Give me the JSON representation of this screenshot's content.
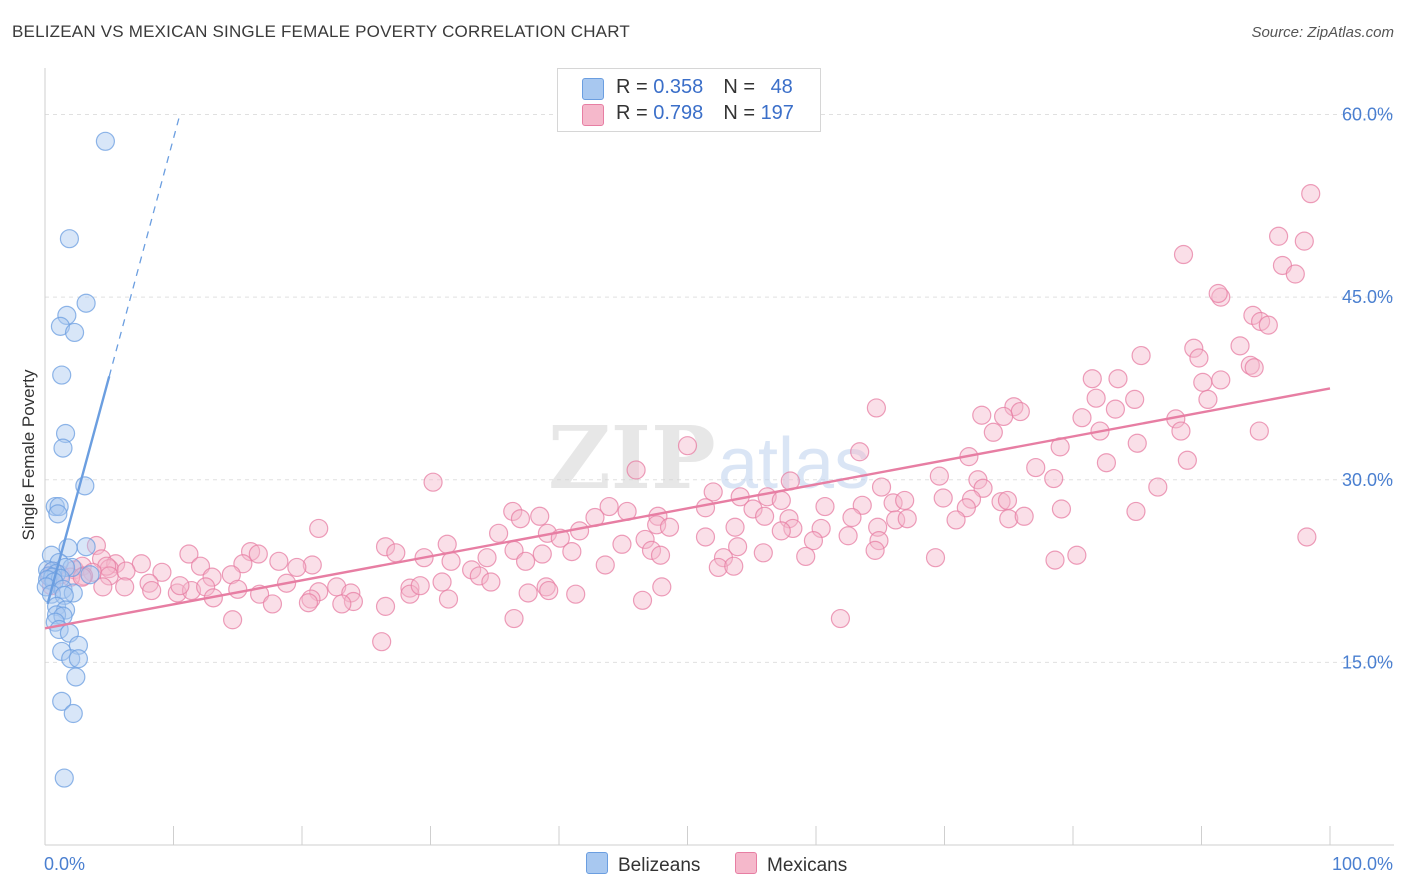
{
  "title": "BELIZEAN VS MEXICAN SINGLE FEMALE POVERTY CORRELATION CHART",
  "source": "Source: ZipAtlas.com",
  "watermark": {
    "zip": "ZIP",
    "atlas": "atlas"
  },
  "legend_stats": [
    {
      "r_label": "R = ",
      "r_value": "0.358",
      "n_label": "N = ",
      "n_value": "48",
      "color": "#a8c8f0"
    },
    {
      "r_label": "R = ",
      "r_value": "0.798",
      "n_label": "N = ",
      "n_value": "197",
      "color": "#f5b8cb"
    }
  ],
  "chart_data": {
    "type": "scatter",
    "title": "BELIZEAN VS MEXICAN SINGLE FEMALE POVERTY CORRELATION CHART",
    "xlabel": "",
    "ylabel": "Single Female Poverty",
    "xlim": [
      0,
      100
    ],
    "ylim": [
      0,
      63
    ],
    "x_tick_labels": [
      "0.0%",
      "100.0%"
    ],
    "y_ticks": [
      15,
      30,
      45,
      60
    ],
    "y_tick_labels": [
      "15.0%",
      "30.0%",
      "45.0%",
      "60.0%"
    ],
    "grid": true,
    "legend": [
      "Belizeans",
      "Mexicans"
    ],
    "series": [
      {
        "name": "Belizeans",
        "color": "#6b9ee0",
        "fill": "#a8c8f0",
        "r": 0.358,
        "n": 48,
        "trend": {
          "x": [
            0.2,
            5.0
          ],
          "y": [
            19.8,
            38.5
          ],
          "dashed_to": [
            10.5,
            60.0
          ]
        },
        "points": [
          [
            4.7,
            57.8
          ],
          [
            1.9,
            49.8
          ],
          [
            3.2,
            44.5
          ],
          [
            1.7,
            43.5
          ],
          [
            1.2,
            42.6
          ],
          [
            2.3,
            42.1
          ],
          [
            1.3,
            38.6
          ],
          [
            1.6,
            33.8
          ],
          [
            1.4,
            32.6
          ],
          [
            3.1,
            29.5
          ],
          [
            0.8,
            27.8
          ],
          [
            1.1,
            27.8
          ],
          [
            1.0,
            27.2
          ],
          [
            3.2,
            24.5
          ],
          [
            1.8,
            24.4
          ],
          [
            0.5,
            23.8
          ],
          [
            1.1,
            23.2
          ],
          [
            2.1,
            22.8
          ],
          [
            1.6,
            22.8
          ],
          [
            0.2,
            22.6
          ],
          [
            0.6,
            22.5
          ],
          [
            0.9,
            22.3
          ],
          [
            0.3,
            22.1
          ],
          [
            3.5,
            22.2
          ],
          [
            0.6,
            22.0
          ],
          [
            0.2,
            21.8
          ],
          [
            1.2,
            21.9
          ],
          [
            0.7,
            21.6
          ],
          [
            0.1,
            21.2
          ],
          [
            1.4,
            21.0
          ],
          [
            0.5,
            20.6
          ],
          [
            2.2,
            20.7
          ],
          [
            1.5,
            20.5
          ],
          [
            0.9,
            19.6
          ],
          [
            1.6,
            19.3
          ],
          [
            0.9,
            18.9
          ],
          [
            1.4,
            18.8
          ],
          [
            0.8,
            18.3
          ],
          [
            1.1,
            17.7
          ],
          [
            1.9,
            17.4
          ],
          [
            2.6,
            16.4
          ],
          [
            1.3,
            15.9
          ],
          [
            2.0,
            15.3
          ],
          [
            2.6,
            15.3
          ],
          [
            2.4,
            13.8
          ],
          [
            1.3,
            11.8
          ],
          [
            2.2,
            10.8
          ],
          [
            1.5,
            5.5
          ]
        ]
      },
      {
        "name": "Mexicans",
        "color": "#e77ea3",
        "fill": "#f5b8cb",
        "r": 0.798,
        "n": 197,
        "trend": {
          "x": [
            0,
            100
          ],
          "y": [
            17.8,
            37.5
          ]
        },
        "points": [
          [
            98.5,
            53.5
          ],
          [
            96.0,
            50.0
          ],
          [
            98.0,
            49.6
          ],
          [
            88.6,
            48.5
          ],
          [
            96.3,
            47.6
          ],
          [
            97.3,
            46.9
          ],
          [
            91.5,
            45.0
          ],
          [
            91.3,
            45.3
          ],
          [
            94.0,
            43.5
          ],
          [
            94.6,
            43.0
          ],
          [
            95.2,
            42.7
          ],
          [
            93.0,
            41.0
          ],
          [
            89.4,
            40.8
          ],
          [
            89.8,
            40.0
          ],
          [
            85.3,
            40.2
          ],
          [
            93.8,
            39.4
          ],
          [
            94.1,
            39.2
          ],
          [
            91.5,
            38.2
          ],
          [
            81.5,
            38.3
          ],
          [
            83.5,
            38.3
          ],
          [
            90.1,
            38.0
          ],
          [
            90.5,
            36.6
          ],
          [
            84.8,
            36.6
          ],
          [
            81.8,
            36.7
          ],
          [
            75.4,
            36.0
          ],
          [
            75.9,
            35.6
          ],
          [
            64.7,
            35.9
          ],
          [
            74.6,
            35.2
          ],
          [
            80.7,
            35.1
          ],
          [
            83.3,
            35.8
          ],
          [
            88.0,
            35.0
          ],
          [
            72.9,
            35.3
          ],
          [
            88.4,
            34.0
          ],
          [
            94.5,
            34.0
          ],
          [
            82.1,
            34.0
          ],
          [
            73.8,
            33.9
          ],
          [
            85.0,
            33.0
          ],
          [
            50.0,
            32.8
          ],
          [
            63.4,
            32.3
          ],
          [
            79.0,
            32.7
          ],
          [
            71.9,
            31.9
          ],
          [
            88.9,
            31.6
          ],
          [
            82.6,
            31.4
          ],
          [
            46.0,
            30.8
          ],
          [
            77.1,
            31.0
          ],
          [
            69.6,
            30.3
          ],
          [
            78.5,
            30.1
          ],
          [
            58.0,
            29.9
          ],
          [
            72.6,
            30.0
          ],
          [
            30.2,
            29.8
          ],
          [
            65.1,
            29.4
          ],
          [
            86.6,
            29.4
          ],
          [
            73.0,
            29.3
          ],
          [
            52.0,
            29.0
          ],
          [
            54.1,
            28.6
          ],
          [
            56.2,
            28.6
          ],
          [
            57.3,
            28.3
          ],
          [
            69.9,
            28.5
          ],
          [
            72.1,
            28.4
          ],
          [
            74.4,
            28.2
          ],
          [
            74.9,
            28.3
          ],
          [
            36.4,
            27.4
          ],
          [
            51.4,
            27.7
          ],
          [
            60.7,
            27.8
          ],
          [
            63.6,
            27.9
          ],
          [
            66.0,
            28.1
          ],
          [
            66.9,
            28.3
          ],
          [
            71.7,
            27.7
          ],
          [
            43.9,
            27.8
          ],
          [
            45.3,
            27.4
          ],
          [
            55.1,
            27.6
          ],
          [
            79.1,
            27.6
          ],
          [
            84.9,
            27.4
          ],
          [
            38.5,
            27.0
          ],
          [
            37.0,
            26.8
          ],
          [
            42.8,
            26.9
          ],
          [
            47.7,
            27.0
          ],
          [
            56.0,
            27.0
          ],
          [
            57.9,
            26.8
          ],
          [
            62.8,
            26.9
          ],
          [
            66.2,
            26.7
          ],
          [
            67.1,
            26.8
          ],
          [
            70.9,
            26.7
          ],
          [
            75.0,
            26.8
          ],
          [
            76.2,
            27.0
          ],
          [
            58.2,
            26.0
          ],
          [
            47.6,
            26.3
          ],
          [
            60.4,
            26.0
          ],
          [
            64.8,
            26.1
          ],
          [
            48.6,
            26.1
          ],
          [
            21.3,
            26.0
          ],
          [
            53.7,
            26.1
          ],
          [
            41.6,
            25.8
          ],
          [
            57.3,
            25.8
          ],
          [
            35.3,
            25.6
          ],
          [
            64.9,
            25.0
          ],
          [
            39.1,
            25.6
          ],
          [
            51.4,
            25.3
          ],
          [
            62.5,
            25.4
          ],
          [
            98.2,
            25.3
          ],
          [
            59.8,
            25.0
          ],
          [
            40.1,
            25.2
          ],
          [
            46.7,
            25.1
          ],
          [
            31.3,
            24.7
          ],
          [
            44.9,
            24.7
          ],
          [
            36.5,
            24.2
          ],
          [
            41.0,
            24.1
          ],
          [
            38.7,
            23.9
          ],
          [
            16.0,
            24.1
          ],
          [
            53.9,
            24.5
          ],
          [
            4.0,
            24.6
          ],
          [
            26.5,
            24.5
          ],
          [
            47.2,
            24.2
          ],
          [
            11.2,
            23.9
          ],
          [
            64.6,
            24.2
          ],
          [
            27.3,
            24.0
          ],
          [
            29.5,
            23.6
          ],
          [
            59.2,
            23.7
          ],
          [
            31.6,
            23.3
          ],
          [
            34.4,
            23.6
          ],
          [
            16.6,
            23.9
          ],
          [
            80.3,
            23.8
          ],
          [
            78.6,
            23.4
          ],
          [
            47.9,
            23.8
          ],
          [
            52.8,
            23.6
          ],
          [
            55.9,
            24.0
          ],
          [
            69.3,
            23.6
          ],
          [
            4.4,
            23.5
          ],
          [
            37.4,
            23.3
          ],
          [
            18.2,
            23.3
          ],
          [
            33.2,
            22.6
          ],
          [
            7.5,
            23.1
          ],
          [
            20.8,
            23.0
          ],
          [
            15.4,
            23.1
          ],
          [
            43.6,
            23.0
          ],
          [
            52.4,
            22.8
          ],
          [
            19.6,
            22.8
          ],
          [
            53.6,
            22.9
          ],
          [
            12.1,
            22.9
          ],
          [
            5.5,
            23.1
          ],
          [
            5.0,
            22.7
          ],
          [
            2.3,
            22.6
          ],
          [
            2.9,
            22.9
          ],
          [
            4.8,
            22.9
          ],
          [
            0.6,
            22.5
          ],
          [
            3.7,
            22.4
          ],
          [
            1.2,
            22.2
          ],
          [
            3.0,
            22.1
          ],
          [
            13.0,
            22.0
          ],
          [
            0.4,
            22.0
          ],
          [
            2.0,
            22.0
          ],
          [
            9.1,
            22.4
          ],
          [
            14.5,
            22.2
          ],
          [
            2.9,
            22.0
          ],
          [
            5.0,
            22.1
          ],
          [
            6.3,
            22.5
          ],
          [
            33.8,
            22.1
          ],
          [
            30.9,
            21.6
          ],
          [
            6.2,
            21.2
          ],
          [
            10.3,
            20.7
          ],
          [
            11.4,
            20.9
          ],
          [
            10.5,
            21.3
          ],
          [
            8.1,
            21.5
          ],
          [
            12.5,
            21.2
          ],
          [
            21.3,
            20.8
          ],
          [
            34.7,
            21.6
          ],
          [
            39.0,
            21.2
          ],
          [
            15.0,
            21.0
          ],
          [
            22.7,
            21.2
          ],
          [
            23.8,
            20.7
          ],
          [
            28.4,
            21.1
          ],
          [
            18.8,
            21.5
          ],
          [
            0.5,
            21.3
          ],
          [
            4.5,
            21.2
          ],
          [
            28.4,
            20.6
          ],
          [
            39.2,
            20.9
          ],
          [
            24.0,
            20.0
          ],
          [
            29.2,
            21.3
          ],
          [
            16.7,
            20.6
          ],
          [
            8.3,
            20.9
          ],
          [
            13.1,
            20.3
          ],
          [
            20.7,
            20.2
          ],
          [
            31.4,
            20.2
          ],
          [
            46.5,
            20.1
          ],
          [
            48.0,
            21.2
          ],
          [
            37.6,
            20.7
          ],
          [
            41.3,
            20.6
          ],
          [
            17.7,
            19.8
          ],
          [
            23.1,
            19.8
          ],
          [
            20.5,
            19.9
          ],
          [
            26.5,
            19.6
          ],
          [
            36.5,
            18.6
          ],
          [
            14.6,
            18.5
          ],
          [
            61.9,
            18.6
          ],
          [
            26.2,
            16.7
          ]
        ]
      }
    ]
  },
  "bottom_legend": [
    {
      "label": "Belizeans",
      "color": "#a8c8f0"
    },
    {
      "label": "Mexicans",
      "color": "#f5b8cb"
    }
  ]
}
